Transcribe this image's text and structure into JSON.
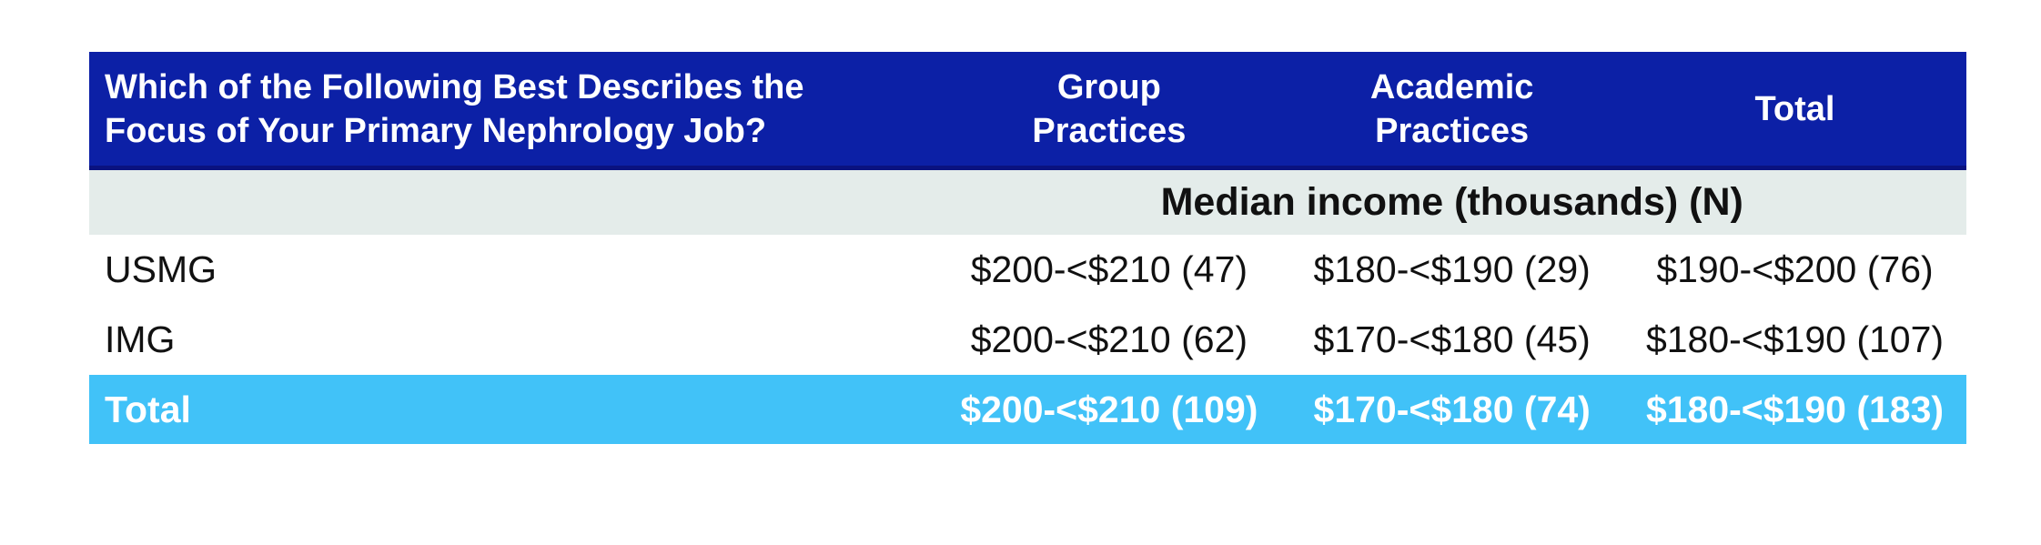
{
  "table": {
    "header": {
      "question": "Which of the Following Best Describes the\nFocus of Your Primary Nephrology Job?",
      "columns": [
        "Group\nPractices",
        "Academic\nPractices",
        "Total"
      ]
    },
    "subheader_label": "Median income (thousands) (N)",
    "rows": [
      {
        "label": "USMG",
        "values": [
          "$200-<$210 (47)",
          "$180-<$190 (29)",
          "$190-<$200 (76)"
        ]
      },
      {
        "label": "IMG",
        "values": [
          "$200-<$210 (62)",
          "$170-<$180 (45)",
          "$180-<$190 (107)"
        ]
      }
    ],
    "total_row": {
      "label": "Total",
      "values": [
        "$200-<$210 (109)",
        "$170-<$180 (74)",
        "$180-<$190 (183)"
      ]
    },
    "colors": {
      "header_bg": "#0C20A6",
      "header_border": "#0A1280",
      "header_text": "#FFFFFF",
      "subheader_bg": "#E4ECEA",
      "total_row_bg": "#41C2F8",
      "total_row_text": "#FFFFFF",
      "body_text": "#111111",
      "page_bg": "#FFFFFF"
    }
  },
  "chart_data": {
    "type": "table",
    "title": "Which of the Following Best Describes the Focus of Your Primary Nephrology Job?",
    "value_note": "Median income (thousands) (N)",
    "columns": [
      "Group Practices",
      "Academic Practices",
      "Total"
    ],
    "rows": [
      {
        "label": "USMG",
        "group_practices": "$200-<$210 (47)",
        "academic_practices": "$180-<$190 (29)",
        "total": "$190-<$200 (76)"
      },
      {
        "label": "IMG",
        "group_practices": "$200-<$210 (62)",
        "academic_practices": "$170-<$180 (45)",
        "total": "$180-<$190 (107)"
      },
      {
        "label": "Total",
        "group_practices": "$200-<$210 (109)",
        "academic_practices": "$170-<$180 (74)",
        "total": "$180-<$190 (183)"
      }
    ]
  }
}
